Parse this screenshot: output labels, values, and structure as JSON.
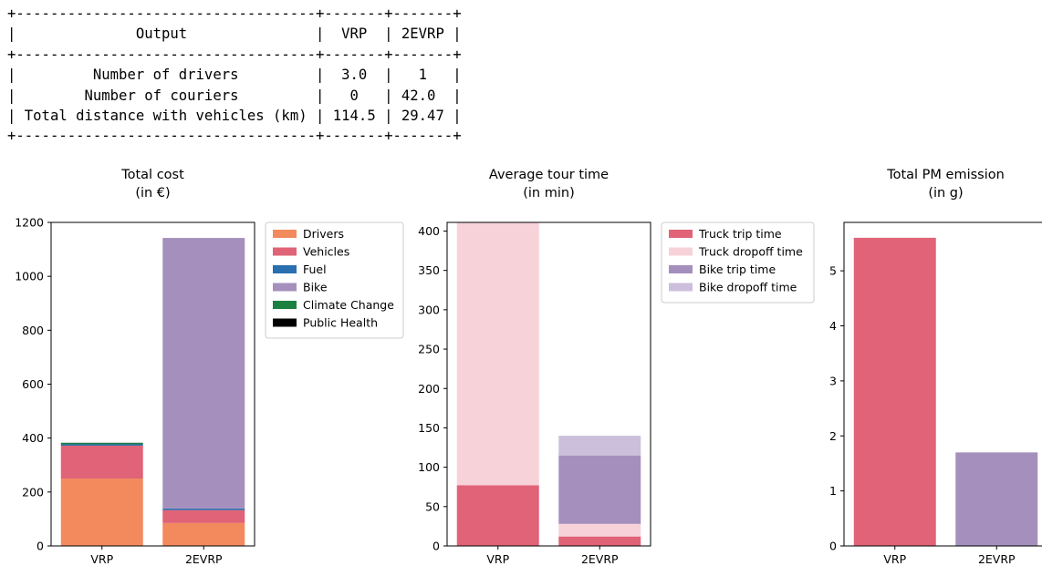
{
  "table": {
    "headers": [
      "Output",
      "VRP",
      "2EVRP"
    ],
    "rows": [
      [
        "Number of drivers",
        "3.0",
        "1"
      ],
      [
        "Number of couriers",
        "0",
        "42.0"
      ],
      [
        "Total distance with vehicles (km)",
        "114.5",
        "29.47"
      ]
    ]
  },
  "chart_data": [
    {
      "type": "bar",
      "stacked": true,
      "title": "Total cost\n(in €)",
      "categories": [
        "VRP",
        "2EVRP"
      ],
      "series": [
        {
          "name": "Drivers",
          "color": "#f28a5e",
          "values": [
            250,
            85
          ]
        },
        {
          "name": "Vehicles",
          "color": "#e06377",
          "values": [
            122,
            48
          ]
        },
        {
          "name": "Fuel",
          "color": "#2a6fb0",
          "values": [
            5,
            6
          ]
        },
        {
          "name": "Bike",
          "color": "#a590bd",
          "values": [
            0,
            1003
          ]
        },
        {
          "name": "Climate Change",
          "color": "#1b8040",
          "values": [
            5,
            0
          ]
        },
        {
          "name": "Public Health",
          "color": "#000000",
          "values": [
            0.5,
            0.2
          ]
        }
      ],
      "yticks": [
        0,
        200,
        400,
        600,
        800,
        1000,
        1200
      ],
      "ylim": [
        0,
        1200
      ],
      "legend": "outside-right",
      "grid": false
    },
    {
      "type": "bar",
      "stacked": true,
      "title": "Average tour time\n(in min)",
      "categories": [
        "VRP",
        "2EVRP"
      ],
      "series": [
        {
          "name": "Truck trip time",
          "color": "#e06377",
          "values": [
            77,
            12
          ]
        },
        {
          "name": "Truck dropoff time",
          "color": "#f7d2d9",
          "values": [
            334,
            16
          ]
        },
        {
          "name": "Bike trip time",
          "color": "#a590bd",
          "values": [
            0,
            87
          ]
        },
        {
          "name": "Bike dropoff time",
          "color": "#ccbfdb",
          "values": [
            0,
            25
          ]
        }
      ],
      "yticks": [
        0,
        50,
        100,
        150,
        200,
        250,
        300,
        350,
        400
      ],
      "ylim": [
        0,
        411
      ],
      "legend": "outside-right",
      "grid": false
    },
    {
      "type": "bar",
      "stacked": false,
      "title": "Total PM emission\n(in g)",
      "categories": [
        "VRP",
        "2EVRP"
      ],
      "values": [
        5.6,
        1.7
      ],
      "colors": [
        "#e06377",
        "#a590bd"
      ],
      "yticks": [
        0,
        1,
        2,
        3,
        4,
        5
      ],
      "ylim": [
        0,
        5.88
      ],
      "grid": false
    }
  ]
}
